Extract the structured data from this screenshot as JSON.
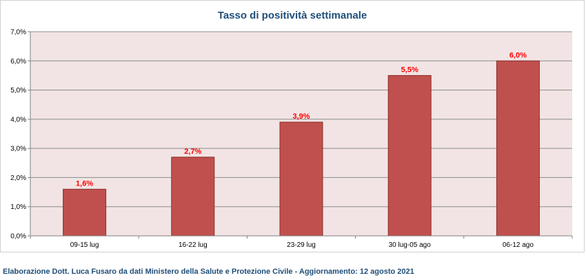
{
  "chart_data": {
    "type": "bar",
    "title": "Tasso di positività settimanale",
    "categories": [
      "09-15 lug",
      "16-22 lug",
      "23-29 lug",
      "30 lug-05 ago",
      "06-12 ago"
    ],
    "values": [
      1.6,
      2.7,
      3.9,
      5.5,
      6.0
    ],
    "data_labels": [
      "1,6%",
      "2,7%",
      "3,9%",
      "5,5%",
      "6,0%"
    ],
    "ylim": [
      0,
      7
    ],
    "yticks": [
      0,
      1,
      2,
      3,
      4,
      5,
      6,
      7
    ],
    "ytick_labels": [
      "0,0%",
      "1,0%",
      "2,0%",
      "3,0%",
      "4,0%",
      "5,0%",
      "6,0%",
      "7,0%"
    ],
    "xlabel": "",
    "ylabel": "",
    "grid": true,
    "colors": {
      "bar_fill": "#c0504d",
      "bar_stroke": "#8b2f2c",
      "plot_background": "#f2e4e4",
      "data_label": "#ff0000",
      "title": "#1f4e79"
    }
  },
  "footer": {
    "credit": "Elaborazione Dott. Luca Fusaro da dati Ministero della Salute e Protezione Civile - Aggiornamento: 12 agosto 2021"
  }
}
